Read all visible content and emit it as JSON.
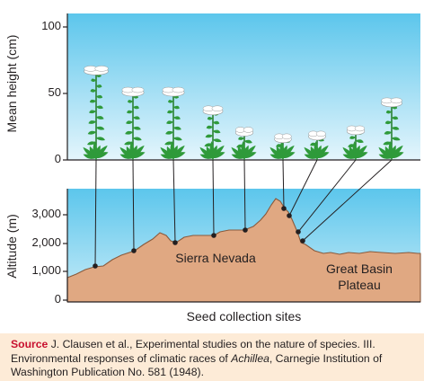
{
  "top_panel": {
    "y_axis_title": "Mean height (cm)",
    "y_ticks": [
      "100",
      "50",
      "0"
    ]
  },
  "bottom_panel": {
    "y_axis_title": "Altitude (m)",
    "y_ticks": [
      "3,000",
      "2,000",
      "1,000",
      "0"
    ],
    "x_axis_title": "Seed collection sites",
    "region_labels": {
      "sierra": "Sierra Nevada",
      "basin_line1": "Great Basin",
      "basin_line2": "Plateau"
    }
  },
  "colors": {
    "sky_top": "#5cc6ec",
    "sky_bottom": "#e4f5fc",
    "ground": "#e0a882",
    "plant_leaf": "#2f9a3a",
    "flower": "#ffffff",
    "caption_bg": "#fdebd7",
    "source_red": "#c8102e"
  },
  "plant_mean_heights_cm": [
    68,
    52,
    52,
    38,
    22,
    17,
    19,
    23,
    44
  ],
  "caption": {
    "source_label": "Source",
    "text_before_italic": " J. Clausen et al., Experimental studies on the nature of species. III. Environmental responses of climatic races of ",
    "italic": "Achillea",
    "text_after_italic": ", Carnegie Institution of Washington Publication No. 581 (1948)."
  }
}
